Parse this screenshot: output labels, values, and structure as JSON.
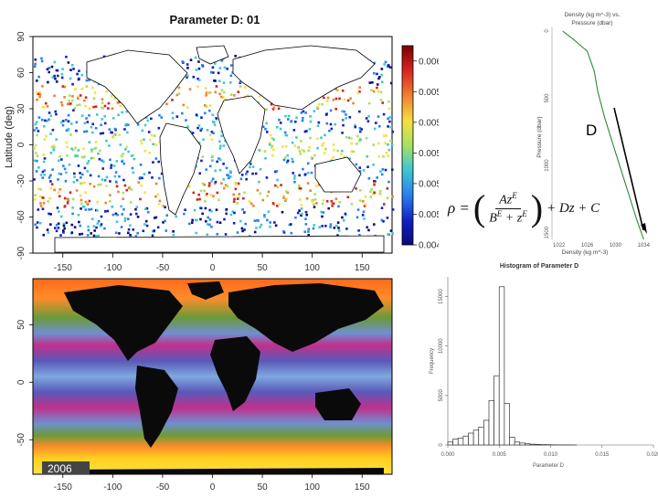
{
  "colors": {
    "map_ocean": "#ffffff",
    "land_white": "#ffffff",
    "land_black": "#0a0a0a",
    "curve_green": "#2e8b2e",
    "bars": "#ffffff",
    "bar_stroke": "#333333"
  },
  "map_top": {
    "title": "Parameter D: 01",
    "ylabel": "Latitude (deg)",
    "yticks": [
      "90",
      "60",
      "30",
      "0",
      "-30",
      "-60",
      "-90"
    ],
    "xticks": [
      "-150",
      "-100",
      "-50",
      "0",
      "50",
      "100",
      "150"
    ]
  },
  "colorbar": {
    "ticks": [
      "0.0060",
      "0.0058",
      "0.0056",
      "0.0054",
      "0.0052",
      "0.0050",
      "0.0048"
    ],
    "min": 0.0048,
    "max": 0.0061,
    "gradient": [
      "#7a0000",
      "#d62020",
      "#f08030",
      "#f5e040",
      "#a8e060",
      "#40c8d0",
      "#2a80f0",
      "#1020c0",
      "#0a0a78"
    ]
  },
  "map_bottom": {
    "year_label": "2006",
    "yticks": [
      "50",
      "0",
      "-50"
    ],
    "xticks": [
      "-150",
      "-100",
      "-50",
      "0",
      "50",
      "100",
      "150"
    ]
  },
  "profile": {
    "title_line1": "Density (kg m^-3) vs.",
    "title_line2": "Pressure (dbar)",
    "ylabel": "Pressure (dbar)",
    "xlabel": "Density (kg m^-3)",
    "yticks": [
      "0",
      "500",
      "1000",
      "1500"
    ],
    "xticks": [
      "1022",
      "1026",
      "1030",
      "1034"
    ],
    "annotation": "D"
  },
  "equation": {
    "rho": "ρ =",
    "num": "Az",
    "num_sup": "E",
    "den_a": "B",
    "den_a_sup": "E",
    "den_plus": " + z",
    "den_b_sup": "E",
    "tail": "+ Dz + C"
  },
  "histogram": {
    "title": "Histogram of Parameter D",
    "xlabel": "Parameter D",
    "ylabel": "Frequency",
    "yticks": [
      "0",
      "5000",
      "10000",
      "15000"
    ],
    "xticks": [
      "0.000",
      "0.005",
      "0.010",
      "0.015",
      "0.020"
    ]
  },
  "chart_data": [
    {
      "type": "scatter",
      "title": "Parameter D: 01",
      "xlabel": "",
      "ylabel": "Latitude (deg)",
      "xlim": [
        -180,
        180
      ],
      "ylim": [
        -90,
        90
      ],
      "colorbar_range": [
        0.0048,
        0.006
      ],
      "note": "Global map of Parameter D values colored by magnitude"
    },
    {
      "type": "heatmap",
      "xlim": [
        -180,
        180
      ],
      "ylim": [
        -80,
        90
      ],
      "label": "2006"
    },
    {
      "type": "line",
      "title": "Density (kg m^-3) vs. Pressure (dbar)",
      "xlabel": "Density (kg m^-3)",
      "ylabel": "Pressure (dbar)",
      "x": [
        1022.5,
        1023.0,
        1024.0,
        1026.0,
        1027.0,
        1027.5,
        1028.5,
        1030.0,
        1031.5,
        1033.0,
        1034.0
      ],
      "y": [
        0,
        20,
        60,
        150,
        300,
        450,
        650,
        900,
        1150,
        1400,
        1550
      ],
      "xlim": [
        1021,
        1035
      ],
      "ylim": [
        1550,
        0
      ]
    },
    {
      "type": "bar",
      "title": "Histogram of Parameter D",
      "xlabel": "Parameter D",
      "ylabel": "Frequency",
      "categories": [
        "0.0000",
        "0.0005",
        "0.0010",
        "0.0015",
        "0.0020",
        "0.0025",
        "0.0030",
        "0.0035",
        "0.0040",
        "0.0045",
        "0.0050",
        "0.0055",
        "0.0060",
        "0.0065",
        "0.0070",
        "0.0075",
        "0.0080",
        "0.0085",
        "0.0090",
        "0.0095",
        "0.0100",
        "0.0105",
        "0.0110",
        "0.0115",
        "0.0120"
      ],
      "values": [
        300,
        600,
        700,
        900,
        1200,
        1500,
        1800,
        2500,
        4500,
        7000,
        16000,
        4200,
        800,
        300,
        200,
        120,
        80,
        60,
        40,
        30,
        20,
        15,
        10,
        8,
        5
      ],
      "ylim": [
        0,
        17000
      ],
      "xlim": [
        0,
        0.02
      ]
    }
  ]
}
